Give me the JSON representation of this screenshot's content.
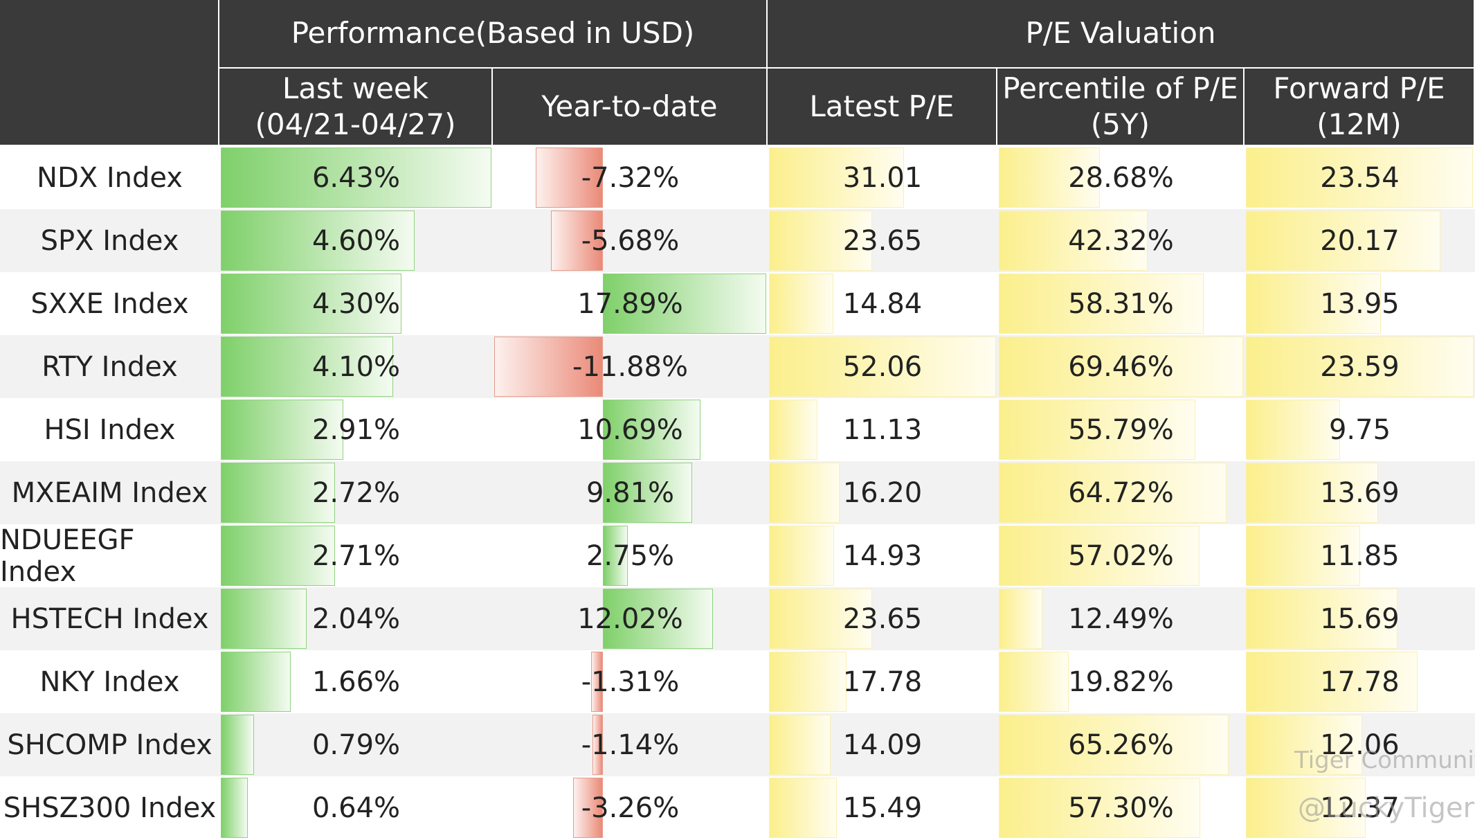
{
  "header": {
    "groups": [
      "Performance(Based in USD)",
      "P/E Valuation"
    ],
    "columns": [
      [
        "Last week",
        "(04/21-04/27)"
      ],
      [
        "Year-to-date"
      ],
      [
        "Latest P/E"
      ],
      [
        "Percentile of P/E",
        "(5Y)"
      ],
      [
        "Forward P/E",
        "(12M)"
      ]
    ]
  },
  "table": {
    "rows": [
      [
        "NDX Index",
        "6.43%",
        "-7.32%",
        "31.01",
        "28.68%",
        "23.54"
      ],
      [
        "SPX Index",
        "4.60%",
        "-5.68%",
        "23.65",
        "42.32%",
        "20.17"
      ],
      [
        "SXXE Index",
        "4.30%",
        "17.89%",
        "14.84",
        "58.31%",
        "13.95"
      ],
      [
        "RTY Index",
        "4.10%",
        "-11.88%",
        "52.06",
        "69.46%",
        "23.59"
      ],
      [
        "HSI Index",
        "2.91%",
        "10.69%",
        "11.13",
        "55.79%",
        "9.75"
      ],
      [
        "MXEAIM Index",
        "2.72%",
        "9.81%",
        "16.20",
        "64.72%",
        "13.69"
      ],
      [
        "NDUEEGF Index",
        "2.71%",
        "2.75%",
        "14.93",
        "57.02%",
        "11.85"
      ],
      [
        "HSTECH Index",
        "2.04%",
        "12.02%",
        "23.65",
        "12.49%",
        "15.69"
      ],
      [
        "NKY Index",
        "1.66%",
        "-1.31%",
        "17.78",
        "19.82%",
        "17.78"
      ],
      [
        "SHCOMP Index",
        "0.79%",
        "-1.14%",
        "14.09",
        "65.26%",
        "12.06"
      ],
      [
        "SHSZ300 Index",
        "0.64%",
        "-3.26%",
        "15.49",
        "57.30%",
        "12.37"
      ]
    ]
  },
  "watermark": {
    "brand": "Tiger Community",
    "handle": "@LuckyTiger"
  }
}
